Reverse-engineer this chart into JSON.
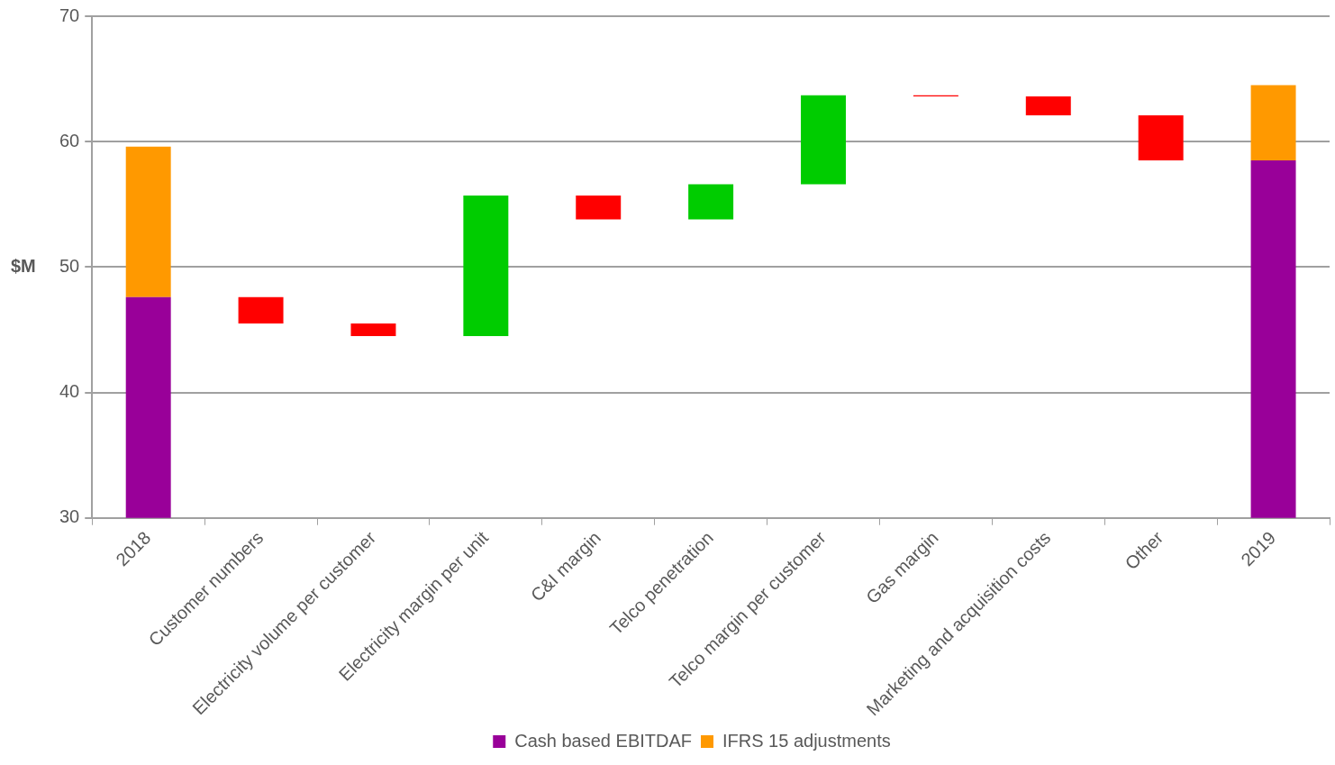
{
  "chart_data": {
    "type": "bar",
    "ylabel": "$M",
    "categories": [
      "2018",
      "Customer numbers",
      "Electricity volume per customer",
      "Electricity margin per unit",
      "C&I margin",
      "Telco penetration",
      "Telco margin per customer",
      "Gas margin",
      "Marketing and acquisition costs",
      "Other",
      "2019"
    ],
    "series": [
      {
        "name": "Cash based EBITDAF",
        "color": "#990099",
        "values": [
          47.6,
          null,
          null,
          null,
          null,
          null,
          null,
          null,
          null,
          null,
          58.5
        ]
      },
      {
        "name": "IFRS 15 adjustments",
        "color": "#ff9900",
        "base": [
          47.6,
          null,
          null,
          null,
          null,
          null,
          null,
          null,
          null,
          null,
          58.5
        ],
        "values": [
          12.0,
          null,
          null,
          null,
          null,
          null,
          null,
          null,
          null,
          null,
          6.0
        ]
      },
      {
        "colors": [
          "#ff0000",
          "#ff0000",
          "#ff0000",
          "#00cc00",
          "#ff0000",
          "#00cc00",
          "#00cc00",
          "#ff0000",
          "#ff0000",
          "#ff0000",
          "#ff0000"
        ],
        "base": [
          null,
          47.6,
          45.5,
          44.5,
          55.7,
          53.8,
          56.6,
          63.7,
          63.6,
          62.1,
          null
        ],
        "values": [
          null,
          -2.1,
          -1.0,
          11.2,
          -1.9,
          2.8,
          7.1,
          -0.1,
          -1.5,
          -3.6,
          null
        ]
      }
    ],
    "ylim": [
      30,
      70
    ],
    "yticks": [
      30,
      40,
      50,
      60,
      70
    ],
    "grid": "y",
    "legend": "bottom"
  }
}
